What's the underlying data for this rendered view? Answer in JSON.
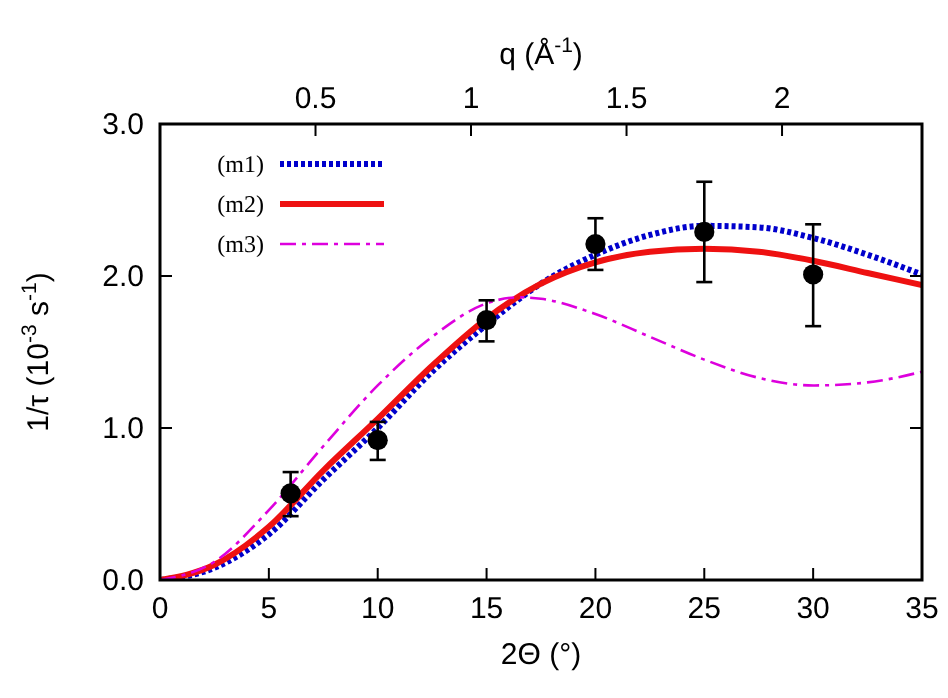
{
  "chart_data": {
    "type": "line",
    "xlabel": "2Θ (°)",
    "ylabel": "1/τ (10$^{-3}$ s$^{-1}$)",
    "x2label": "q (Å$^{-1}$)",
    "xlim": [
      0,
      35
    ],
    "xticks": [
      0,
      5,
      10,
      15,
      20,
      25,
      30,
      35
    ],
    "ylim": [
      0,
      3
    ],
    "yticks": [
      {
        "value": 0,
        "label": "0.0"
      },
      {
        "value": 1,
        "label": "1.0"
      },
      {
        "value": 2,
        "label": "2.0"
      },
      {
        "value": 3,
        "label": "3.0"
      }
    ],
    "x2lim": [
      0,
      2.45
    ],
    "x2ticks": [
      0.5,
      1,
      1.5,
      2
    ],
    "grid": false,
    "legend": "top left",
    "series": [
      {
        "name": "(m1)",
        "color": "#0000cc",
        "line_style": "dotted",
        "marker": "none",
        "x": [
          0,
          2.5,
          5,
          7.5,
          10,
          12.5,
          15,
          17.5,
          20,
          22.5,
          25,
          27.5,
          30,
          32.5,
          35
        ],
        "values": [
          0,
          0.08,
          0.3,
          0.66,
          1.0,
          1.37,
          1.68,
          1.95,
          2.14,
          2.27,
          2.33,
          2.32,
          2.25,
          2.14,
          2.01
        ]
      },
      {
        "name": "(m2)",
        "color": "#ee1111",
        "line_style": "solid",
        "marker": "none",
        "x": [
          0,
          2.5,
          5,
          7.5,
          10,
          12.5,
          15,
          17.5,
          20,
          22.5,
          25,
          27.5,
          30,
          32.5,
          35
        ],
        "values": [
          0,
          0.1,
          0.35,
          0.72,
          1.06,
          1.41,
          1.72,
          1.95,
          2.09,
          2.16,
          2.18,
          2.16,
          2.1,
          2.02,
          1.94
        ]
      },
      {
        "name": "(m3)",
        "color": "#dd00dd",
        "line_style": "dashed",
        "marker": "none",
        "x": [
          0,
          2.5,
          5,
          7.5,
          10,
          12.5,
          15,
          16.5,
          17.5,
          20,
          22.5,
          25,
          27.5,
          30,
          32.5,
          35
        ],
        "values": [
          0,
          0.12,
          0.46,
          0.88,
          1.28,
          1.6,
          1.82,
          1.86,
          1.85,
          1.75,
          1.6,
          1.45,
          1.33,
          1.28,
          1.3,
          1.37
        ]
      },
      {
        "type": "scatter",
        "color": "#000000",
        "marker": "circle",
        "x": [
          6,
          10,
          15,
          20,
          25,
          30
        ],
        "values": [
          0.57,
          0.92,
          1.71,
          2.21,
          2.29,
          2.01
        ],
        "errors": [
          [
            0.42,
            0.71
          ],
          [
            0.79,
            1.04
          ],
          [
            1.57,
            1.84
          ],
          [
            2.04,
            2.38
          ],
          [
            1.96,
            2.62
          ],
          [
            1.67,
            2.34
          ]
        ]
      }
    ]
  }
}
